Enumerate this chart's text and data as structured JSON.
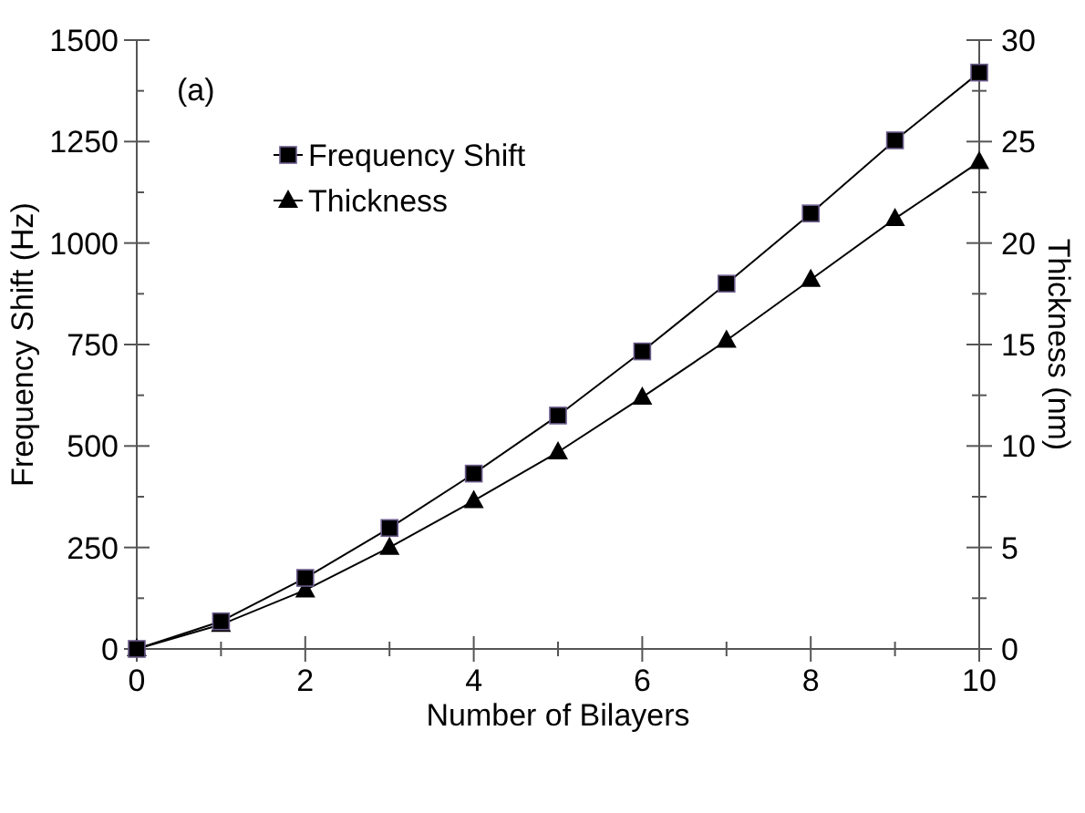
{
  "chart_data": {
    "type": "line",
    "xlabel": "Number of Bilayers",
    "ylabel": "Frequency Shift (Hz)",
    "y2label": "Thickness (nm)",
    "annotations": [
      "(a)"
    ],
    "x": [
      0,
      1,
      2,
      3,
      4,
      5,
      6,
      7,
      8,
      9,
      10
    ],
    "series": [
      {
        "name": "Frequency Shift",
        "color": "#000000",
        "marker": "square",
        "values": [
          0,
          68,
          175,
          298,
          432,
          575,
          733,
          900,
          1073,
          1253,
          1420
        ]
      },
      {
        "name": "Thickness",
        "color": "#000000",
        "marker": "triangle",
        "axis": "y2",
        "values": [
          0,
          1.2,
          2.9,
          5.0,
          7.3,
          9.7,
          12.4,
          15.2,
          18.2,
          21.2,
          24.0
        ]
      }
    ],
    "xlim": [
      0,
      10
    ],
    "xticks": [
      0,
      {
        "value": 1,
        "label": null
      },
      2,
      {
        "value": 3,
        "label": null
      },
      4,
      {
        "value": 5,
        "label": null
      },
      6,
      {
        "value": 7,
        "label": null
      },
      8,
      {
        "value": 9,
        "label": null
      },
      10
    ],
    "ylim": [
      0,
      1500
    ],
    "yticks": [
      0,
      {
        "value": 125,
        "label": null
      },
      250,
      {
        "value": 375,
        "label": null
      },
      500,
      {
        "value": 625,
        "label": null
      },
      750,
      {
        "value": 875,
        "label": null
      },
      1000,
      {
        "value": 1125,
        "label": null
      },
      1250,
      {
        "value": 1375,
        "label": null
      },
      1500
    ],
    "y2lim": [
      0,
      30
    ],
    "y2ticks": [
      0,
      {
        "value": 2.5,
        "label": null
      },
      5,
      {
        "value": 7.5,
        "label": null
      },
      10,
      {
        "value": 12.5,
        "label": null
      },
      15,
      {
        "value": 17.5,
        "label": null
      },
      20,
      {
        "value": 22.5,
        "label": null
      },
      25,
      {
        "value": 27.5,
        "label": null
      },
      30
    ],
    "grid": false,
    "legend": "top left",
    "line_style": "solid"
  }
}
